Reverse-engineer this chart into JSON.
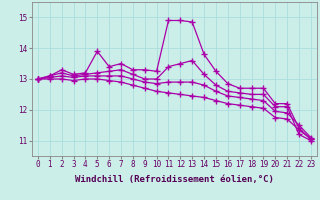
{
  "background_color": "#cceee8",
  "grid_color": "#aadddd",
  "line_color": "#aa00aa",
  "marker": "+",
  "markersize": 4,
  "linewidth": 0.9,
  "markeredgewidth": 1.0,
  "xlabel": "Windchill (Refroidissement éolien,°C)",
  "xlabel_fontsize": 6.5,
  "tick_fontsize": 5.5,
  "ylim": [
    10.5,
    15.5
  ],
  "xlim": [
    -0.5,
    23.5
  ],
  "yticks": [
    11,
    12,
    13,
    14,
    15
  ],
  "xticks": [
    0,
    1,
    2,
    3,
    4,
    5,
    6,
    7,
    8,
    9,
    10,
    11,
    12,
    13,
    14,
    15,
    16,
    17,
    18,
    19,
    20,
    21,
    22,
    23
  ],
  "series": [
    [
      13.0,
      13.1,
      13.3,
      13.15,
      13.2,
      13.9,
      13.4,
      13.5,
      13.3,
      13.3,
      13.25,
      14.9,
      14.9,
      14.85,
      13.8,
      13.25,
      12.85,
      12.7,
      12.7,
      12.7,
      12.2,
      12.2,
      11.4,
      11.05
    ],
    [
      13.0,
      13.1,
      13.2,
      13.1,
      13.15,
      13.2,
      13.25,
      13.3,
      13.15,
      13.0,
      13.0,
      13.4,
      13.5,
      13.6,
      13.15,
      12.8,
      12.6,
      12.55,
      12.5,
      12.5,
      12.1,
      12.1,
      11.2,
      11.0
    ],
    [
      13.0,
      13.05,
      13.1,
      13.05,
      13.1,
      13.1,
      13.1,
      13.1,
      13.0,
      12.9,
      12.85,
      12.9,
      12.9,
      12.9,
      12.8,
      12.6,
      12.45,
      12.4,
      12.35,
      12.3,
      11.95,
      11.9,
      11.5,
      11.1
    ],
    [
      13.0,
      13.0,
      13.0,
      12.95,
      13.0,
      13.0,
      12.95,
      12.9,
      12.8,
      12.7,
      12.6,
      12.55,
      12.5,
      12.45,
      12.4,
      12.3,
      12.2,
      12.15,
      12.1,
      12.05,
      11.75,
      11.7,
      11.35,
      11.05
    ]
  ]
}
